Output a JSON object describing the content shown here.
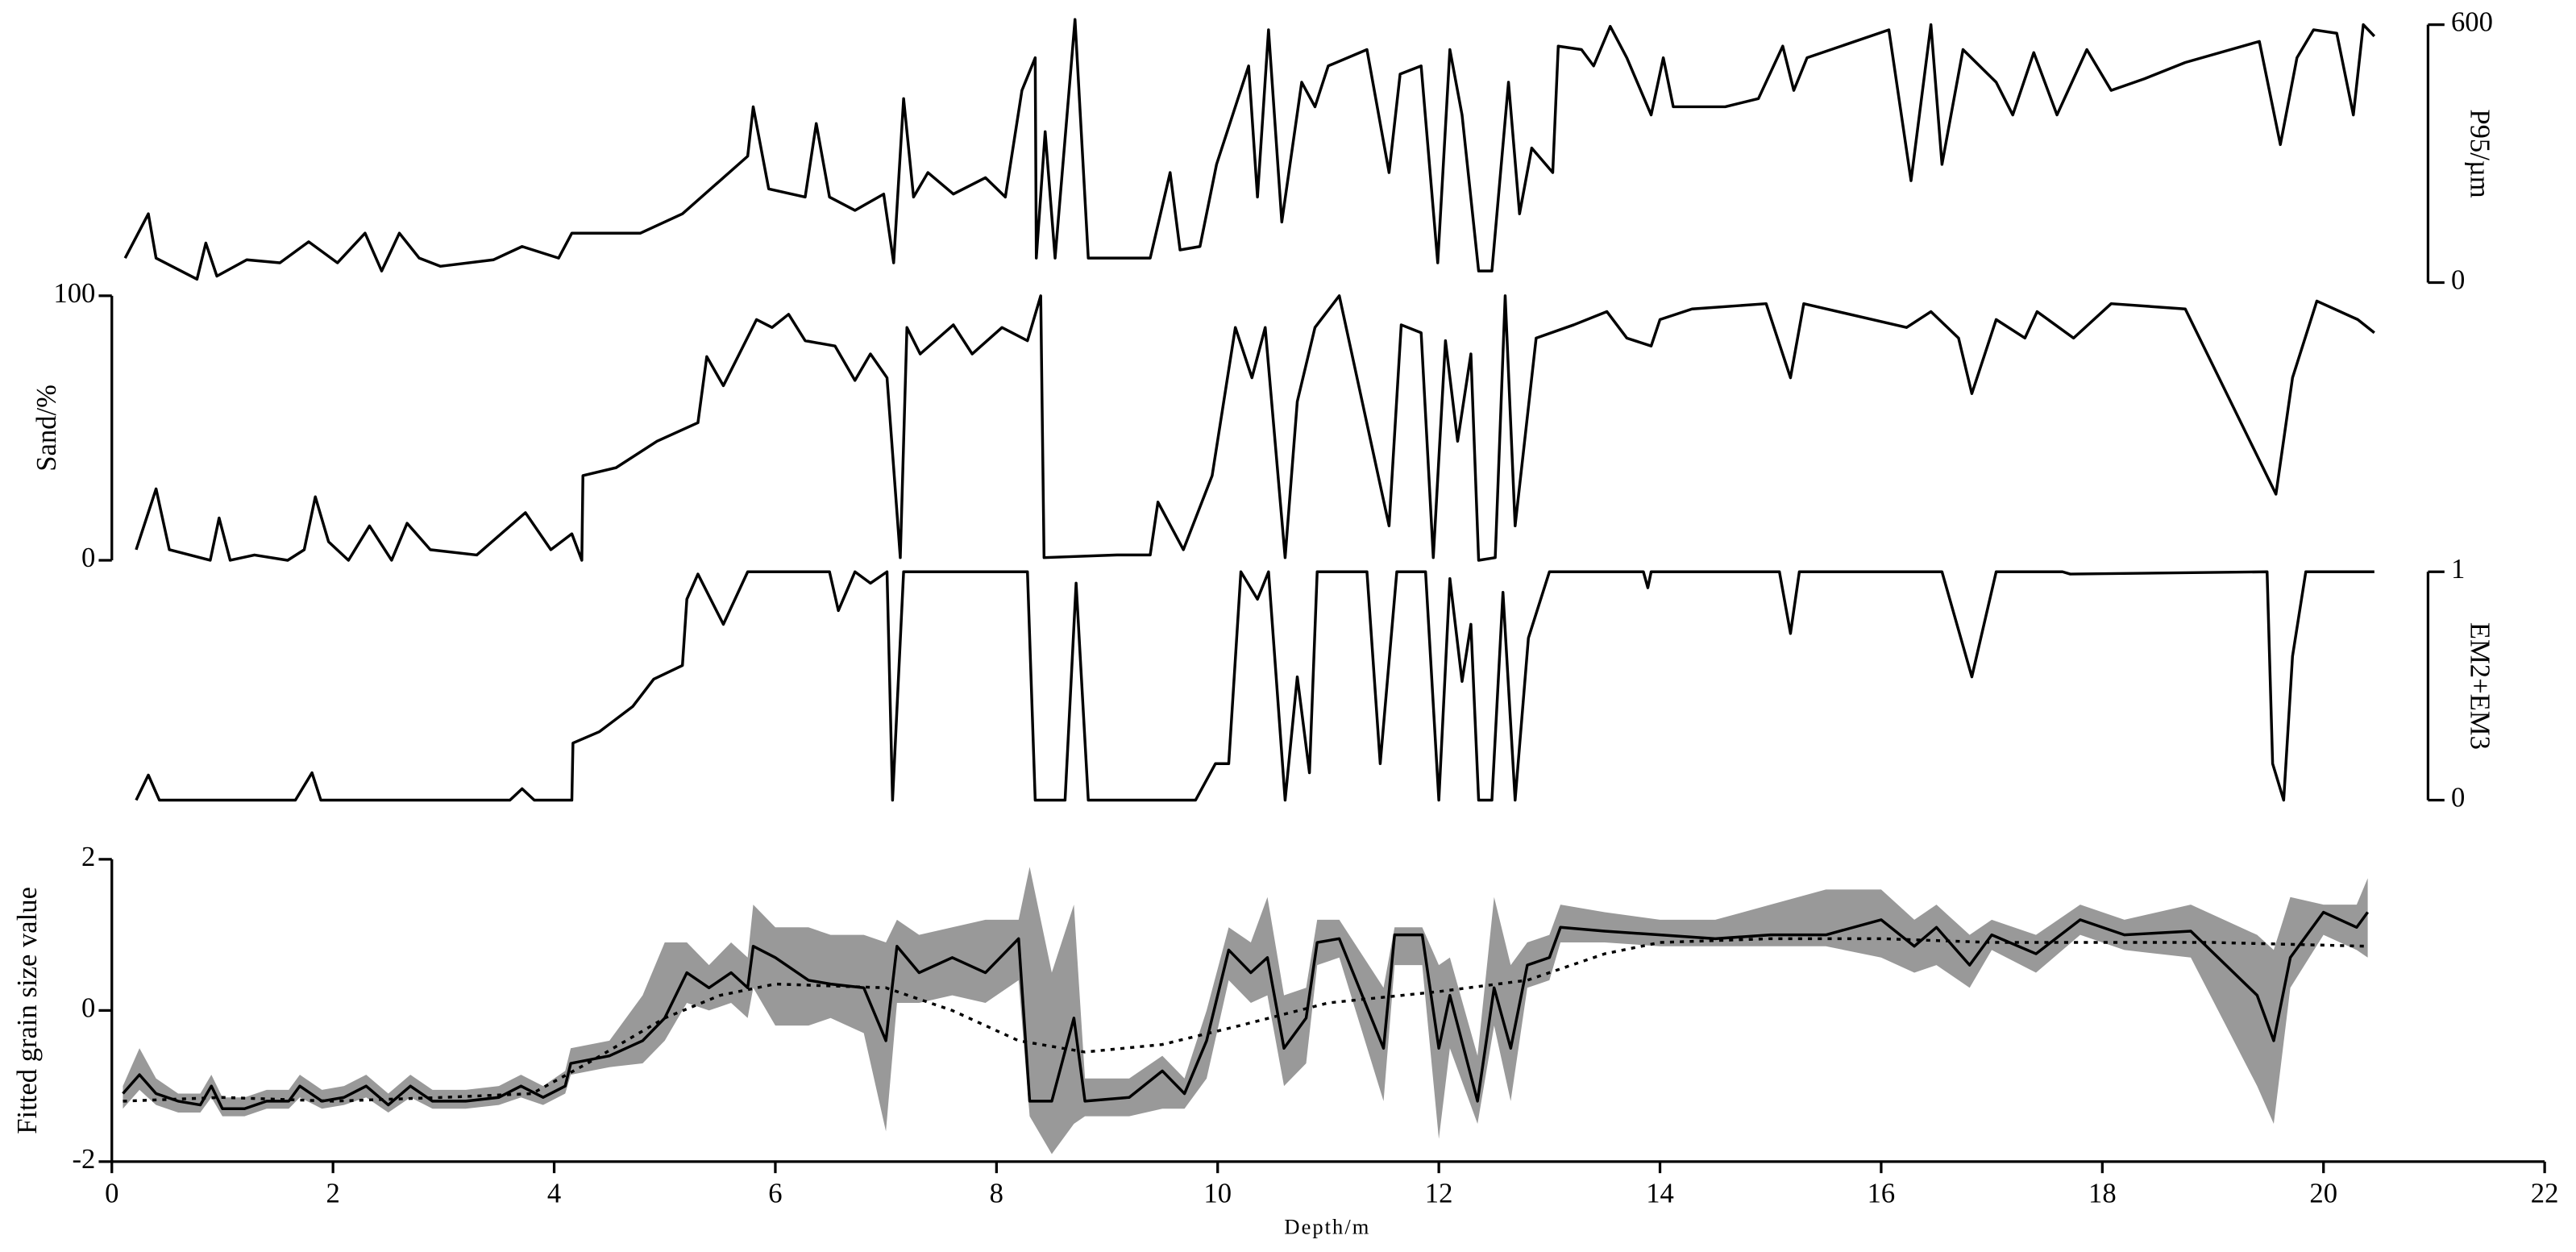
{
  "chart_data": [
    {
      "type": "line",
      "ylabel": "P95/µm",
      "y_axis_side": "right",
      "color": "#000000",
      "ylim": [
        0,
        600
      ],
      "yticks": [
        0,
        600
      ],
      "x": [
        0.12,
        0.33,
        0.4,
        0.77,
        0.85,
        0.95,
        1.22,
        1.52,
        1.78,
        2.04,
        2.29,
        2.44,
        2.6,
        2.78,
        2.97,
        3.45,
        3.71,
        4.04,
        4.16,
        4.78,
        5.16,
        5.53,
        5.75,
        5.8,
        5.94,
        6.27,
        6.37,
        6.49,
        6.72,
        6.98,
        7.07,
        7.16,
        7.25,
        7.38,
        7.61,
        7.9,
        8.08,
        8.23,
        8.35,
        8.36,
        8.44,
        8.53,
        8.71,
        8.83,
        9.39,
        9.57,
        9.66,
        9.84,
        9.99,
        10.28,
        10.36,
        10.46,
        10.58,
        10.76,
        10.88,
        11.0,
        11.35,
        11.55,
        11.65,
        11.84,
        11.99,
        12.1,
        12.21,
        12.36,
        12.48,
        12.63,
        12.73,
        12.84,
        13.03,
        13.08,
        13.29,
        13.4,
        13.55,
        13.7,
        13.92,
        14.03,
        14.12,
        14.59,
        14.89,
        15.11,
        15.21,
        15.33,
        16.07,
        16.27,
        16.45,
        16.55,
        16.74,
        17.04,
        17.19,
        17.38,
        17.59,
        17.86,
        18.08,
        18.38,
        18.75,
        19.42,
        19.61,
        19.76,
        19.91,
        20.12,
        20.27,
        20.36,
        20.46
      ],
      "values": [
        57,
        160,
        57,
        8,
        92,
        15,
        53,
        46,
        95,
        46,
        115,
        27,
        115,
        57,
        38,
        53,
        84,
        57,
        115,
        115,
        160,
        244,
        294,
        409,
        218,
        199,
        370,
        199,
        168,
        206,
        46,
        428,
        199,
        256,
        206,
        244,
        199,
        447,
        523,
        57,
        351,
        57,
        612,
        57,
        57,
        256,
        76,
        84,
        275,
        504,
        199,
        588,
        141,
        466,
        409,
        504,
        542,
        256,
        485,
        504,
        46,
        542,
        390,
        27,
        27,
        466,
        160,
        313,
        256,
        550,
        542,
        504,
        596,
        523,
        390,
        523,
        409,
        409,
        428,
        550,
        447,
        523,
        588,
        237,
        600,
        275,
        542,
        466,
        390,
        535,
        390,
        542,
        447,
        474,
        512,
        561,
        321,
        523,
        588,
        580,
        390,
        600,
        573
      ]
    },
    {
      "type": "line",
      "ylabel": "Sand/%",
      "y_axis_side": "left",
      "color": "#000000",
      "ylim": [
        0,
        100
      ],
      "yticks": [
        0,
        100
      ],
      "x": [
        0.22,
        0.4,
        0.52,
        0.89,
        0.97,
        1.07,
        1.29,
        1.59,
        1.74,
        1.84,
        1.96,
        2.14,
        2.33,
        2.53,
        2.67,
        2.88,
        3.3,
        3.74,
        3.97,
        4.16,
        4.25,
        4.26,
        4.56,
        4.93,
        5.3,
        5.38,
        5.53,
        5.83,
        5.97,
        6.12,
        6.27,
        6.54,
        6.72,
        6.86,
        7.01,
        7.13,
        7.19,
        7.31,
        7.61,
        7.78,
        8.05,
        8.28,
        8.4,
        8.43,
        9.09,
        9.39,
        9.46,
        9.69,
        9.95,
        10.16,
        10.31,
        10.43,
        10.61,
        10.72,
        10.88,
        11.1,
        11.55,
        11.66,
        11.84,
        11.95,
        12.06,
        12.17,
        12.29,
        12.36,
        12.51,
        12.6,
        12.69,
        12.88,
        13.22,
        13.52,
        13.7,
        13.92,
        14.0,
        14.29,
        14.96,
        15.18,
        15.3,
        16.23,
        16.45,
        16.7,
        16.82,
        17.04,
        17.3,
        17.41,
        17.74,
        18.08,
        18.75,
        19.57,
        19.72,
        19.94,
        20.31,
        20.46
      ],
      "values": [
        4,
        27,
        4,
        0,
        16,
        0,
        2,
        0,
        4,
        24,
        7,
        0,
        13,
        0,
        14,
        4,
        2,
        18,
        4,
        10,
        0,
        32,
        35,
        45,
        52,
        77,
        66,
        91,
        88,
        93,
        83,
        81,
        68,
        78,
        69,
        1,
        88,
        78,
        89,
        78,
        88,
        83,
        100,
        1,
        2,
        2,
        22,
        4,
        32,
        88,
        69,
        88,
        1,
        60,
        88,
        100,
        13,
        89,
        86,
        1,
        83,
        45,
        78,
        0,
        1,
        100,
        13,
        84,
        89,
        94,
        84,
        81,
        91,
        95,
        97,
        69,
        97,
        88,
        94,
        84,
        63,
        91,
        84,
        94,
        84,
        97,
        95,
        25,
        69,
        98,
        91,
        86
      ]
    },
    {
      "type": "line",
      "ylabel": "EM2+EM3",
      "y_axis_side": "right",
      "color": "#000000",
      "ylim": [
        0,
        1
      ],
      "yticks": [
        0,
        1
      ],
      "x": [
        0.22,
        0.33,
        0.43,
        1.66,
        1.81,
        1.89,
        3.6,
        3.71,
        3.82,
        4.16,
        4.17,
        4.41,
        4.71,
        4.9,
        5.16,
        5.2,
        5.3,
        5.53,
        5.75,
        6.49,
        6.57,
        6.72,
        6.86,
        7.01,
        7.06,
        7.16,
        8.28,
        8.35,
        8.62,
        8.72,
        8.83,
        9.8,
        9.98,
        10.1,
        10.21,
        10.36,
        10.46,
        10.61,
        10.72,
        10.83,
        10.9,
        11.35,
        11.47,
        11.62,
        11.88,
        12.0,
        12.1,
        12.21,
        12.29,
        12.36,
        12.48,
        12.58,
        12.69,
        12.81,
        13.0,
        13.85,
        13.89,
        13.92,
        15.08,
        15.18,
        15.26,
        16.55,
        16.82,
        17.04,
        17.64,
        17.71,
        19.49,
        19.54,
        19.64,
        19.72,
        19.84,
        20.46
      ],
      "values": [
        0,
        0.11,
        0,
        0,
        0.12,
        0,
        0,
        0.05,
        0,
        0,
        0.25,
        0.3,
        0.41,
        0.53,
        0.59,
        0.88,
        0.99,
        0.77,
        1,
        1,
        0.83,
        1,
        0.95,
        1,
        0,
        1,
        1,
        0,
        0,
        0.95,
        0,
        0,
        0.16,
        0.16,
        1,
        0.88,
        1,
        0,
        0.54,
        0.12,
        1,
        1,
        0.16,
        1,
        1,
        0,
        0.97,
        0.52,
        0.77,
        0,
        0,
        0.91,
        0,
        0.71,
        1,
        1,
        0.93,
        1,
        1,
        0.73,
        1,
        1,
        0.54,
        1,
        1,
        0.99,
        1,
        0.16,
        0,
        0.63,
        1,
        1
      ]
    },
    {
      "type": "line",
      "ylabel": "Fitted grain size value",
      "y_axis_side": "left",
      "xlabel": "Depth/m",
      "xlim": [
        0,
        22
      ],
      "xticks": [
        0,
        2,
        4,
        6,
        8,
        10,
        12,
        14,
        16,
        18,
        20,
        22
      ],
      "ylim": [
        -2,
        2
      ],
      "yticks": [
        -2,
        0,
        2
      ],
      "x": [
        0.1,
        0.25,
        0.4,
        0.6,
        0.8,
        0.9,
        1.0,
        1.2,
        1.4,
        1.6,
        1.7,
        1.9,
        2.1,
        2.3,
        2.5,
        2.7,
        2.9,
        3.2,
        3.5,
        3.7,
        3.9,
        4.1,
        4.15,
        4.5,
        4.8,
        5.0,
        5.2,
        5.4,
        5.6,
        5.75,
        5.8,
        6.0,
        6.3,
        6.5,
        6.8,
        7.0,
        7.1,
        7.3,
        7.6,
        7.9,
        8.2,
        8.3,
        8.5,
        8.7,
        8.8,
        9.2,
        9.5,
        9.7,
        9.9,
        10.1,
        10.3,
        10.45,
        10.6,
        10.8,
        10.9,
        11.1,
        11.5,
        11.6,
        11.85,
        12.0,
        12.1,
        12.35,
        12.5,
        12.65,
        12.8,
        13.0,
        13.1,
        13.5,
        14.0,
        14.5,
        15.0,
        15.5,
        16.0,
        16.3,
        16.5,
        16.8,
        17.0,
        17.4,
        17.8,
        18.2,
        18.8,
        19.4,
        19.55,
        19.7,
        20.0,
        20.3,
        20.4
      ],
      "series": [
        {
          "style": "band",
          "color": "#999999",
          "lower": [
            -1.3,
            -1.05,
            -1.25,
            -1.35,
            -1.35,
            -1.15,
            -1.4,
            -1.4,
            -1.3,
            -1.3,
            -1.15,
            -1.3,
            -1.25,
            -1.15,
            -1.35,
            -1.15,
            -1.3,
            -1.3,
            -1.25,
            -1.15,
            -1.25,
            -1.1,
            -0.85,
            -0.75,
            -0.7,
            -0.4,
            0.1,
            0.0,
            0.1,
            -0.1,
            0.3,
            -0.2,
            -0.2,
            -0.1,
            -0.3,
            -1.6,
            0.1,
            0.1,
            0.2,
            0.1,
            0.4,
            -1.4,
            -1.9,
            -1.5,
            -1.4,
            -1.4,
            -1.3,
            -1.3,
            -0.9,
            0.4,
            0.1,
            0.2,
            -1.0,
            -0.7,
            0.6,
            0.7,
            -1.2,
            0.6,
            0.6,
            -1.7,
            -0.5,
            -1.5,
            -0.2,
            -1.2,
            0.3,
            0.4,
            0.9,
            0.9,
            0.85,
            0.85,
            0.85,
            0.85,
            0.7,
            0.5,
            0.6,
            0.3,
            0.8,
            0.5,
            1.0,
            0.8,
            0.7,
            -1.0,
            -1.5,
            0.3,
            1.0,
            0.8,
            0.7
          ],
          "upper": [
            -1.0,
            -0.5,
            -0.9,
            -1.1,
            -1.1,
            -0.85,
            -1.15,
            -1.15,
            -1.05,
            -1.05,
            -0.85,
            -1.05,
            -1.0,
            -0.85,
            -1.1,
            -0.85,
            -1.05,
            -1.05,
            -1.0,
            -0.85,
            -1.0,
            -0.8,
            -0.5,
            -0.4,
            0.2,
            0.9,
            0.9,
            0.6,
            0.9,
            0.7,
            1.4,
            1.1,
            1.1,
            1.0,
            1.0,
            0.9,
            1.2,
            1.0,
            1.1,
            1.2,
            1.2,
            1.9,
            0.5,
            1.4,
            -0.9,
            -0.9,
            -0.6,
            -0.9,
            0.0,
            1.1,
            0.9,
            1.5,
            0.2,
            0.3,
            1.2,
            1.2,
            0.3,
            1.1,
            1.1,
            0.6,
            0.7,
            -0.6,
            1.5,
            0.6,
            0.9,
            1.0,
            1.4,
            1.3,
            1.2,
            1.2,
            1.4,
            1.6,
            1.6,
            1.2,
            1.4,
            1.0,
            1.2,
            1.0,
            1.4,
            1.2,
            1.4,
            1.0,
            0.8,
            1.5,
            1.4,
            1.4,
            1.75
          ]
        },
        {
          "style": "solid",
          "color": "#000000",
          "values": [
            -1.1,
            -0.85,
            -1.1,
            -1.2,
            -1.25,
            -1.0,
            -1.3,
            -1.3,
            -1.2,
            -1.2,
            -1.0,
            -1.2,
            -1.15,
            -1.0,
            -1.25,
            -1.0,
            -1.2,
            -1.2,
            -1.15,
            -1.0,
            -1.15,
            -1.0,
            -0.7,
            -0.6,
            -0.4,
            -0.1,
            0.5,
            0.3,
            0.5,
            0.3,
            0.85,
            0.7,
            0.4,
            0.35,
            0.3,
            -0.4,
            0.85,
            0.5,
            0.7,
            0.5,
            0.95,
            -1.2,
            -1.2,
            -0.1,
            -1.2,
            -1.15,
            -0.8,
            -1.1,
            -0.4,
            0.8,
            0.5,
            0.7,
            -0.5,
            -0.1,
            0.9,
            0.95,
            -0.5,
            1.0,
            1.0,
            -0.5,
            0.2,
            -1.2,
            0.3,
            -0.5,
            0.6,
            0.7,
            1.1,
            1.05,
            1.0,
            0.95,
            1.0,
            1.0,
            1.2,
            0.85,
            1.1,
            0.6,
            1.0,
            0.75,
            1.2,
            1.0,
            1.05,
            0.2,
            -0.4,
            0.7,
            1.3,
            1.1,
            1.3
          ]
        },
        {
          "style": "dotted",
          "color": "#000000",
          "x": [
            0.1,
            1,
            2,
            3,
            3.8,
            4.3,
            5,
            5.5,
            6,
            7,
            7.6,
            8.2,
            8.8,
            9.5,
            10.2,
            11,
            12,
            12.8,
            13.5,
            14,
            15,
            16,
            17,
            19,
            20.4
          ],
          "values": [
            -1.2,
            -1.15,
            -1.2,
            -1.15,
            -1.1,
            -0.7,
            -0.1,
            0.2,
            0.35,
            0.3,
            0.0,
            -0.4,
            -0.55,
            -0.45,
            -0.2,
            0.1,
            0.25,
            0.4,
            0.75,
            0.9,
            0.95,
            0.95,
            0.9,
            0.9,
            0.85
          ]
        }
      ]
    }
  ]
}
